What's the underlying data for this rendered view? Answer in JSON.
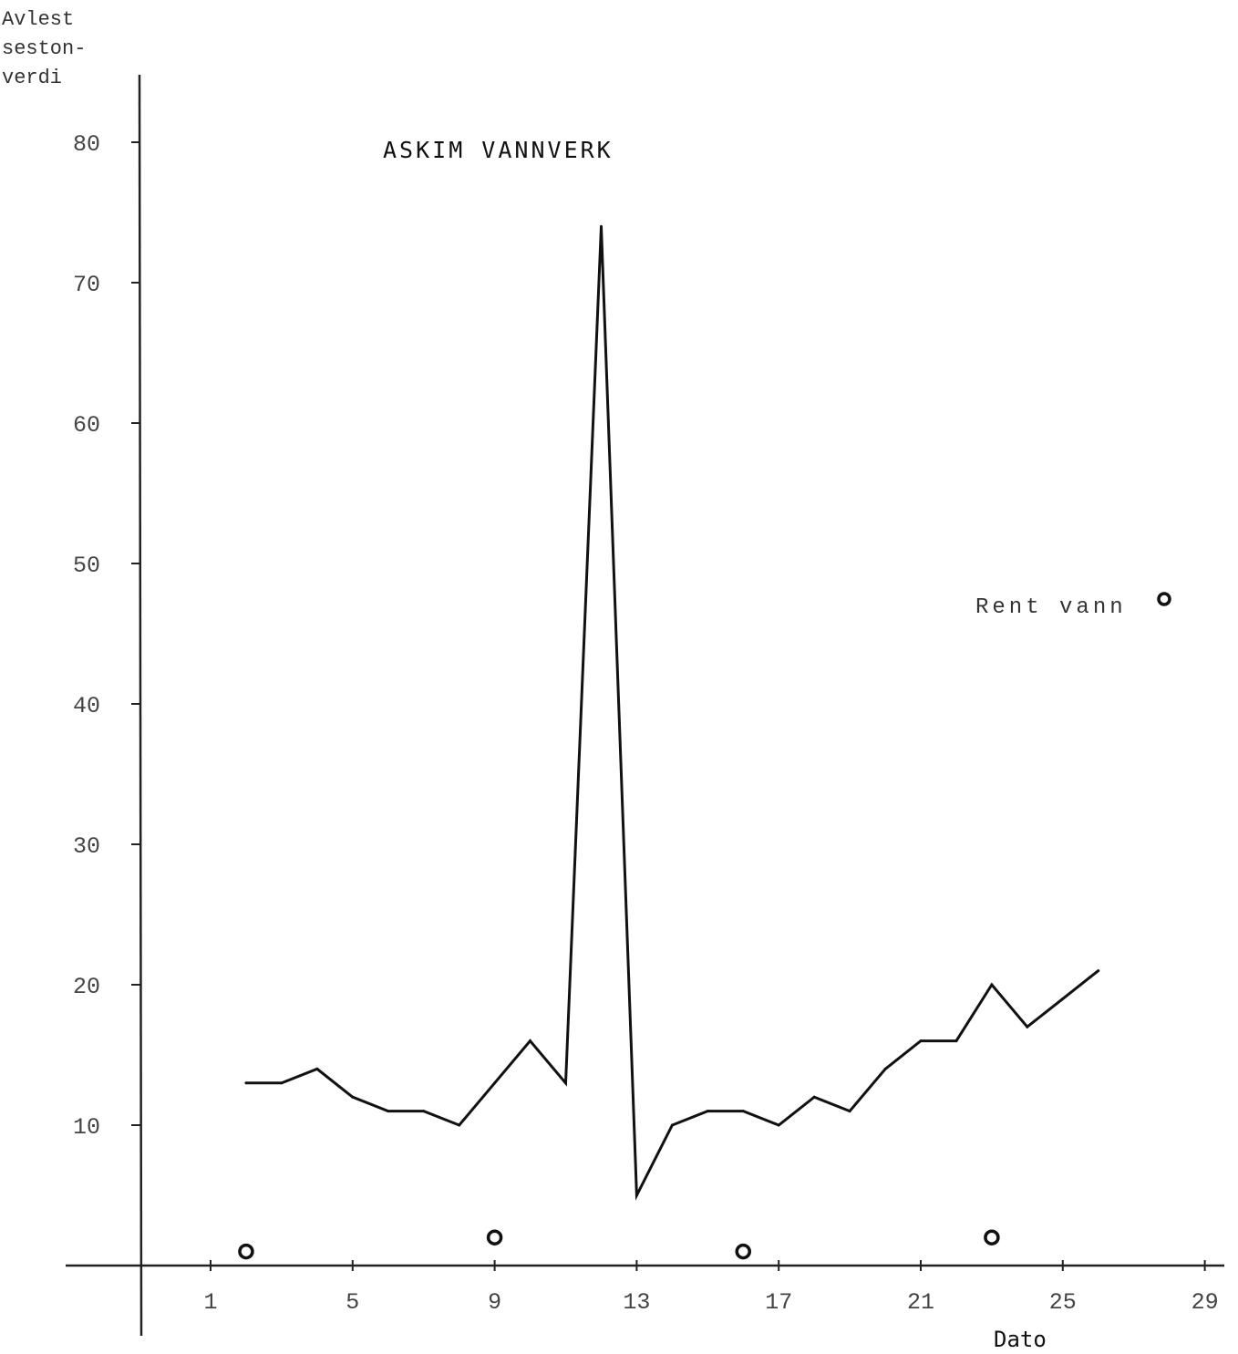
{
  "chart_data": {
    "type": "line",
    "title": "ASKIM VANNVERK",
    "ylabel": [
      "Avlest",
      "seston-",
      "verdi"
    ],
    "xlabel": "Dato",
    "xlim": [
      -1,
      29
    ],
    "ylim": [
      0,
      85
    ],
    "x_ticks": [
      1,
      5,
      9,
      13,
      17,
      21,
      25,
      29
    ],
    "x_tick_labels": [
      "1",
      "5",
      "9",
      "13",
      "17",
      "21",
      "25",
      "29"
    ],
    "y_ticks": [
      10,
      20,
      30,
      40,
      50,
      60,
      70,
      80
    ],
    "y_tick_labels": [
      "10",
      "20",
      "30",
      "40",
      "50",
      "60",
      "70",
      "80"
    ],
    "grid": false,
    "series": [
      {
        "x": [
          2,
          3,
          4,
          5,
          6,
          7,
          8,
          9,
          10,
          11,
          12,
          13,
          14,
          15,
          16,
          17,
          18,
          19,
          20,
          21,
          22,
          23,
          24,
          25,
          26
        ],
        "y": [
          13,
          13,
          14,
          12,
          11,
          11,
          10,
          13,
          16,
          13,
          74,
          5,
          10,
          11,
          11,
          10,
          12,
          11,
          14,
          16,
          16,
          20,
          17,
          19,
          21
        ]
      },
      {
        "name": "Rent vann",
        "marker": "circle",
        "x": [
          2,
          9,
          16,
          23
        ],
        "y": [
          1,
          2,
          1,
          2
        ]
      }
    ],
    "legend": {
      "label": "Rent vann",
      "placement": "right"
    }
  }
}
